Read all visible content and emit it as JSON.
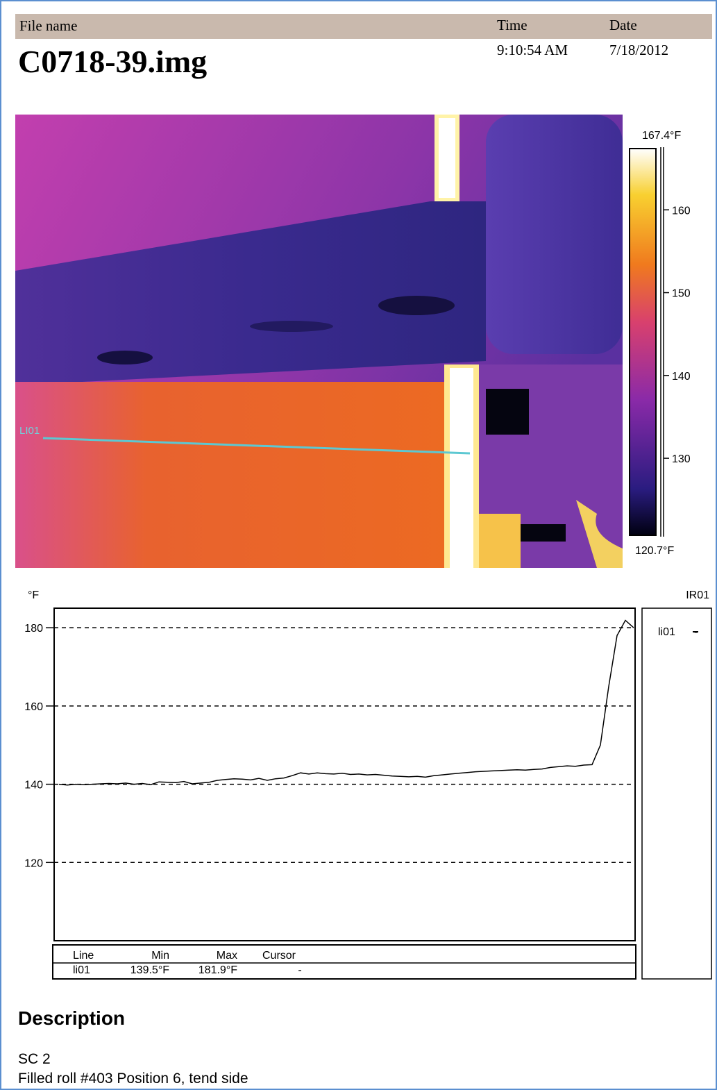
{
  "header": {
    "file_name_label": "File name",
    "file_name": "C0718-39.img",
    "time_label": "Time",
    "time": "9:10:54 AM",
    "date_label": "Date",
    "date": "7/18/2012"
  },
  "thermal_image": {
    "line_label": "LI01",
    "colorbar": {
      "lim": [
        {
          "value": 120.7,
          "label": "120.7°F"
        },
        {
          "value": 167.4,
          "label": "167.4°F"
        }
      ],
      "ticks": [
        130,
        140,
        150,
        160
      ]
    }
  },
  "chart_data": {
    "type": "line",
    "y_label": "°F",
    "ylim": [
      100,
      185
    ],
    "yticks": [
      120,
      140,
      160,
      180
    ],
    "grid": true,
    "legend_title": "IR01",
    "series": [
      {
        "name": "li01",
        "color": "#000000",
        "legend_value": "-",
        "values": [
          140,
          139.8,
          140,
          139.9,
          140,
          140.1,
          140.2,
          140.1,
          140.3,
          140,
          140.2,
          139.9,
          140.6,
          140.5,
          140.4,
          140.7,
          140.1,
          140.3,
          140.5,
          141,
          141.2,
          141.4,
          141.3,
          141.1,
          141.5,
          141,
          141.4,
          141.6,
          142.2,
          142.9,
          142.6,
          142.9,
          142.7,
          142.6,
          142.8,
          142.5,
          142.6,
          142.4,
          142.5,
          142.3,
          142.1,
          142,
          141.9,
          142,
          141.8,
          142.2,
          142.4,
          142.6,
          142.8,
          143,
          143.2,
          143.3,
          143.4,
          143.5,
          143.6,
          143.7,
          143.6,
          143.8,
          143.9,
          144.3,
          144.5,
          144.7,
          144.6,
          144.9,
          145,
          150,
          165,
          178,
          181.9,
          180
        ]
      }
    ]
  },
  "stats_table": {
    "columns": [
      "Line",
      "Min",
      "Max",
      "Cursor"
    ],
    "rows": [
      [
        "li01",
        "139.5°F",
        "181.9°F",
        "-"
      ]
    ]
  },
  "description": {
    "heading": "Description",
    "lines": [
      "SC 2",
      "Filled roll #403 Position 6, tend side"
    ]
  }
}
